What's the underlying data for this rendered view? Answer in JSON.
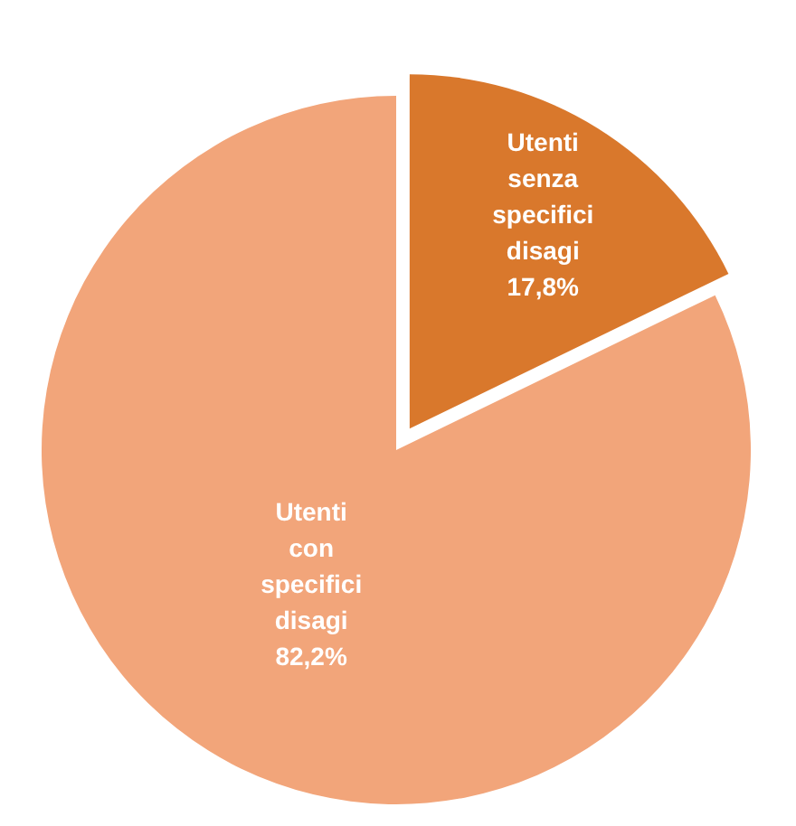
{
  "chart_data": {
    "type": "pie",
    "categories": [
      "Utenti senza specifici disagi",
      "Utenti con specifici disagi"
    ],
    "values": [
      17.8,
      82.2
    ],
    "colors": [
      "#d9782c",
      "#f2a57a"
    ],
    "value_labels": [
      "17,8%",
      "82,2%"
    ],
    "legend": false
  }
}
